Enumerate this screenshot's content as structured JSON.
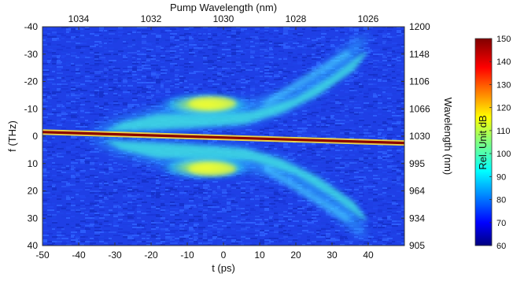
{
  "chart_data": {
    "type": "heatmap",
    "title": "",
    "x_axis_bottom": {
      "label": "t (ps)",
      "range": [
        -50,
        50
      ],
      "ticks": [
        -50,
        -40,
        -30,
        -20,
        -10,
        0,
        10,
        20,
        30,
        40
      ]
    },
    "x_axis_top": {
      "label": "Pump Wavelength (nm)",
      "unit": "nm",
      "ticks": [
        {
          "t": -40,
          "label": "1034"
        },
        {
          "t": -20,
          "label": "1032"
        },
        {
          "t": 0,
          "label": "1030"
        },
        {
          "t": 20,
          "label": "1028"
        },
        {
          "t": 40,
          "label": "1026"
        }
      ]
    },
    "y_axis_left": {
      "label": "f (THz)",
      "range": [
        -40,
        40
      ],
      "inverted": true,
      "ticks": [
        -40,
        -30,
        -20,
        -10,
        0,
        10,
        20,
        30,
        40
      ]
    },
    "y_axis_right": {
      "label": "Wavelength (nm)",
      "ticks": [
        {
          "f": -40,
          "label": "1200"
        },
        {
          "f": -30,
          "label": "1148"
        },
        {
          "f": -20,
          "label": "1106"
        },
        {
          "f": -10,
          "label": "1066"
        },
        {
          "f": 0,
          "label": "1030"
        },
        {
          "f": 10,
          "label": "995"
        },
        {
          "f": 20,
          "label": "964"
        },
        {
          "f": 30,
          "label": "934"
        },
        {
          "f": 40,
          "label": "905"
        }
      ]
    },
    "colorbar": {
      "label": "Rel. Unit dB",
      "range": [
        60,
        150
      ],
      "ticks": [
        60,
        70,
        80,
        90,
        100,
        110,
        120,
        130,
        140,
        150
      ],
      "colormap": "jet"
    },
    "pump_line": {
      "t": [
        -50,
        50
      ],
      "f": [
        -1.5,
        2.5
      ],
      "level_db": 150
    },
    "sidebands": {
      "peak_level_db": 118,
      "background_level_db": 82
    }
  },
  "colors": {
    "background": "#ffffff",
    "axis": "#333333"
  }
}
